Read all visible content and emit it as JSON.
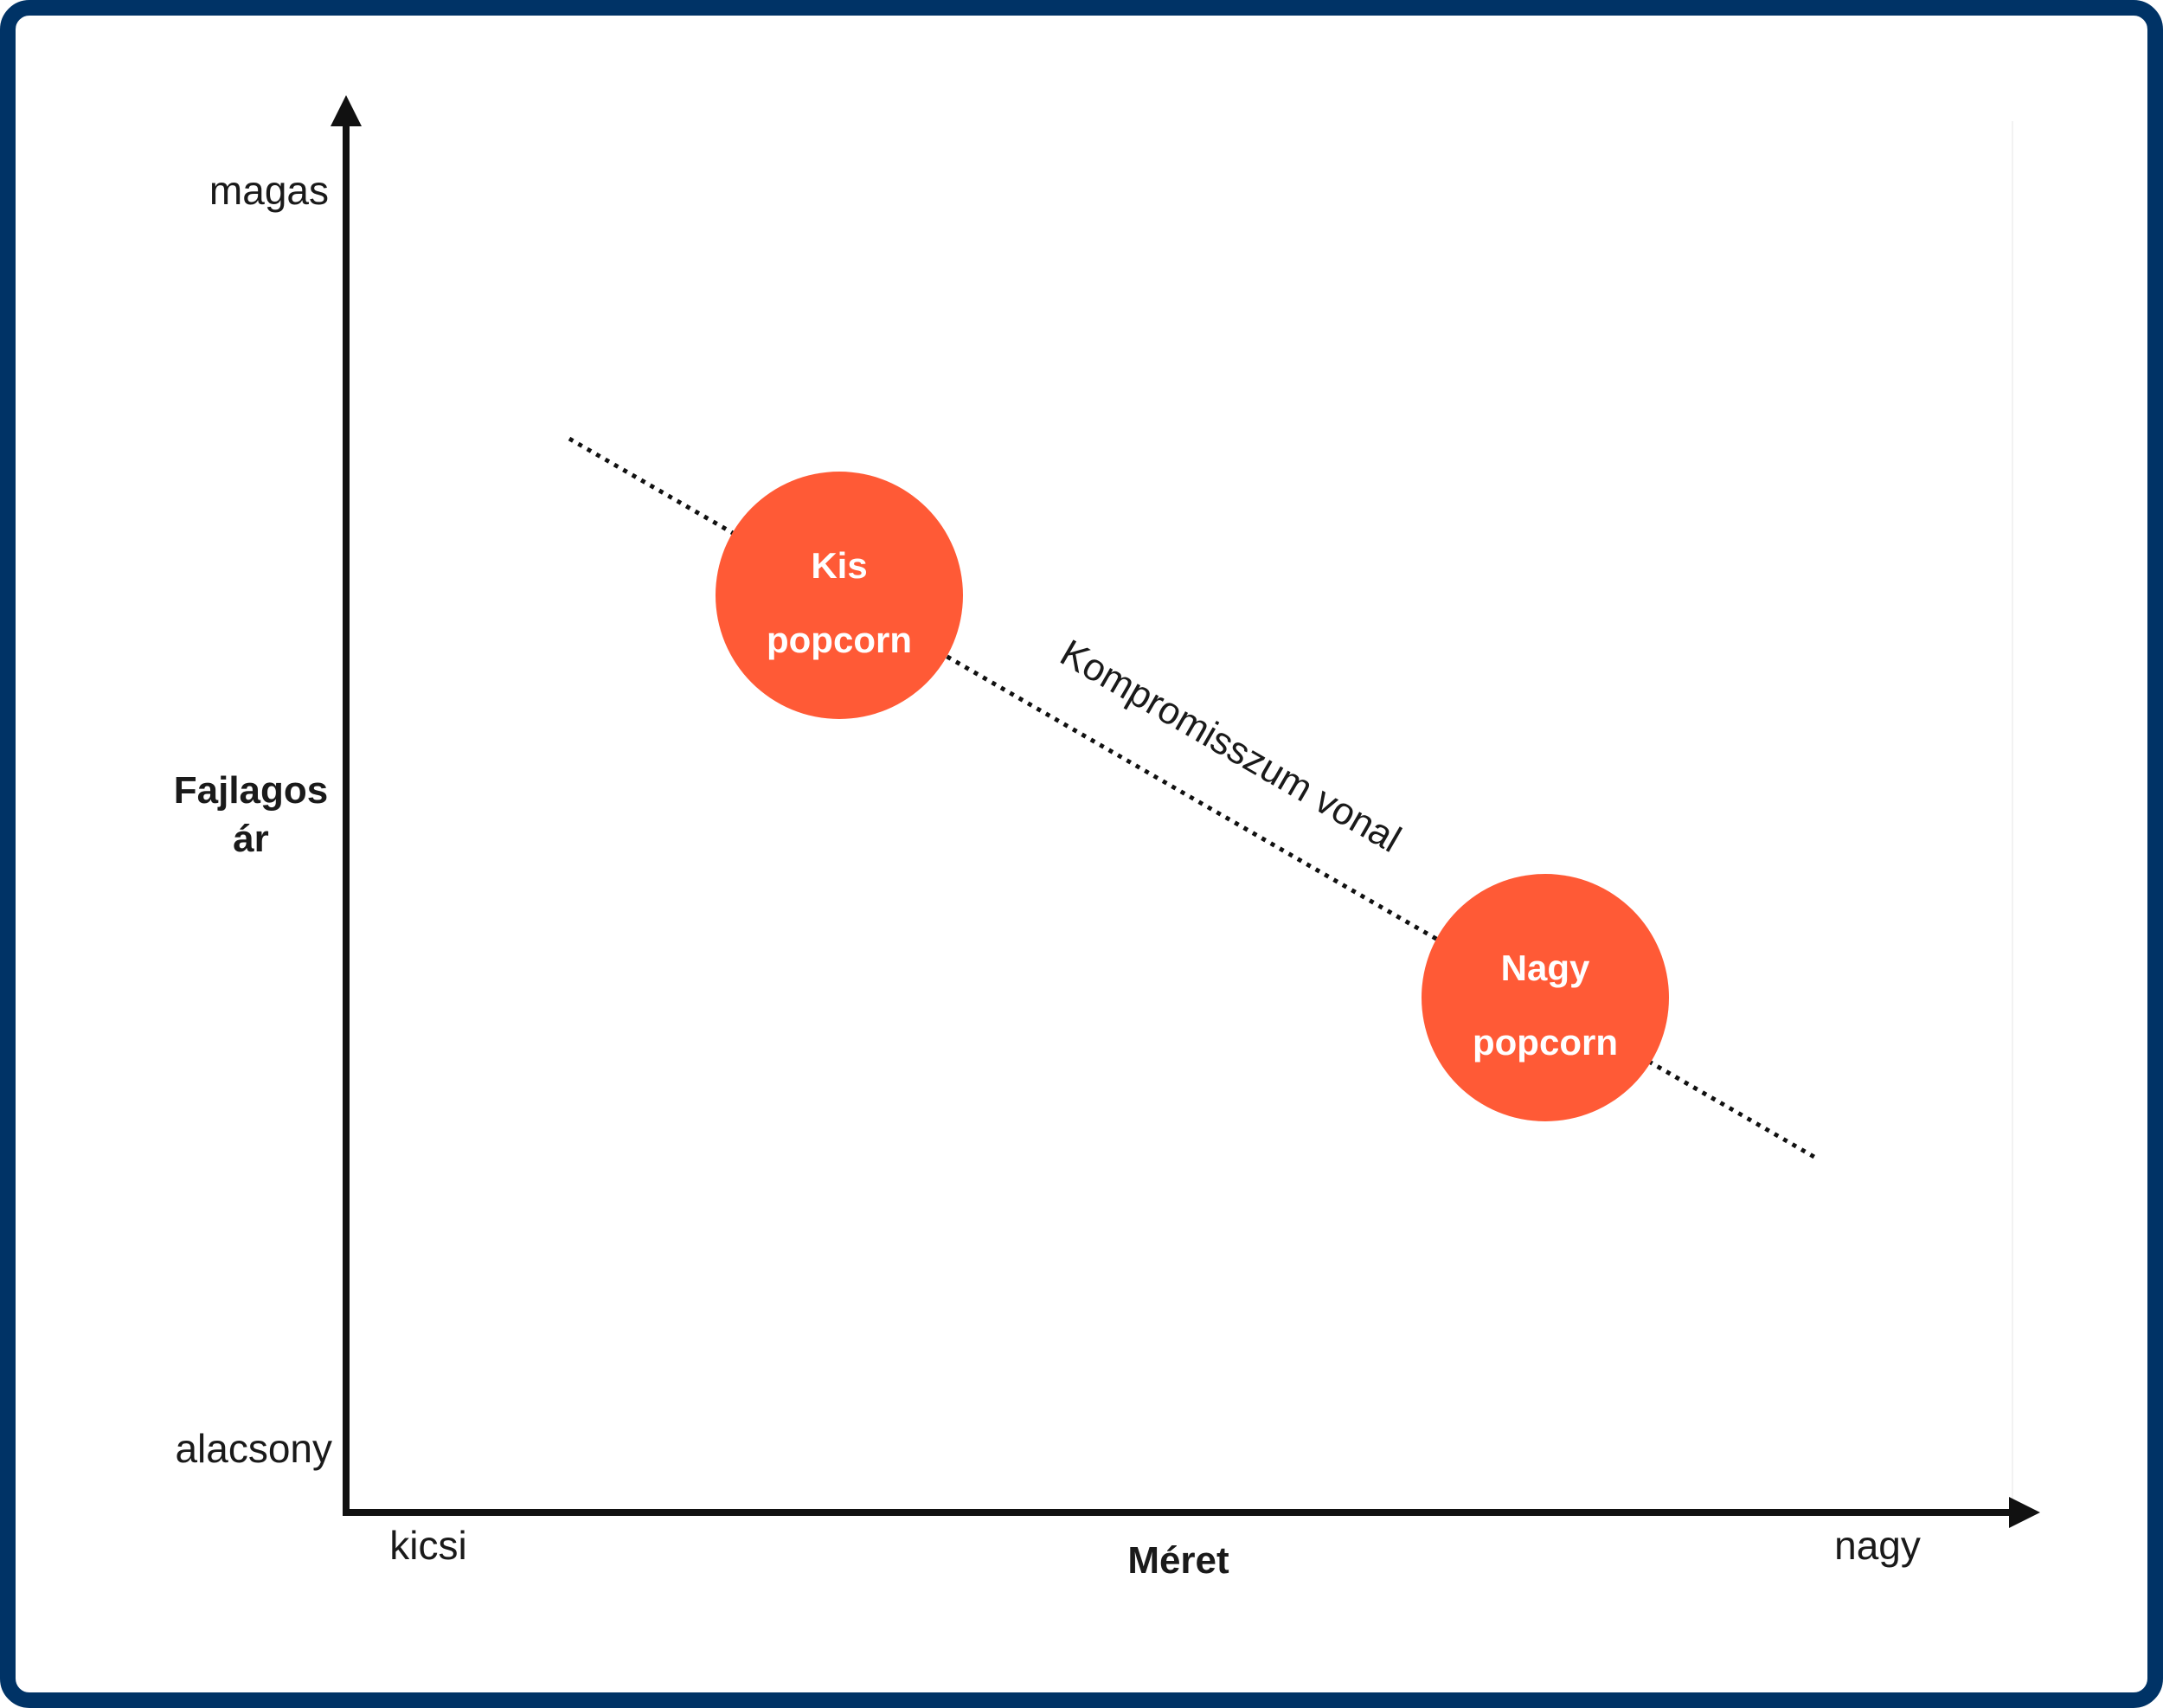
{
  "axes": {
    "y_title_line1": "Fajlagos",
    "y_title_line2": "ár",
    "y_high": "magas",
    "y_low": "alacsony",
    "x_title": "Méret",
    "x_low": "kicsi",
    "x_high": "nagy"
  },
  "tradeoff_line": {
    "label": "Kompromisszum vonal"
  },
  "points": [
    {
      "line1": "Kis",
      "line2": "popcorn"
    },
    {
      "line1": "Nagy",
      "line2": "popcorn"
    }
  ],
  "colors": {
    "frame": "#003366",
    "axis": "#111111",
    "bubble": "#ff5a36",
    "bubble_text": "#ffffff"
  }
}
